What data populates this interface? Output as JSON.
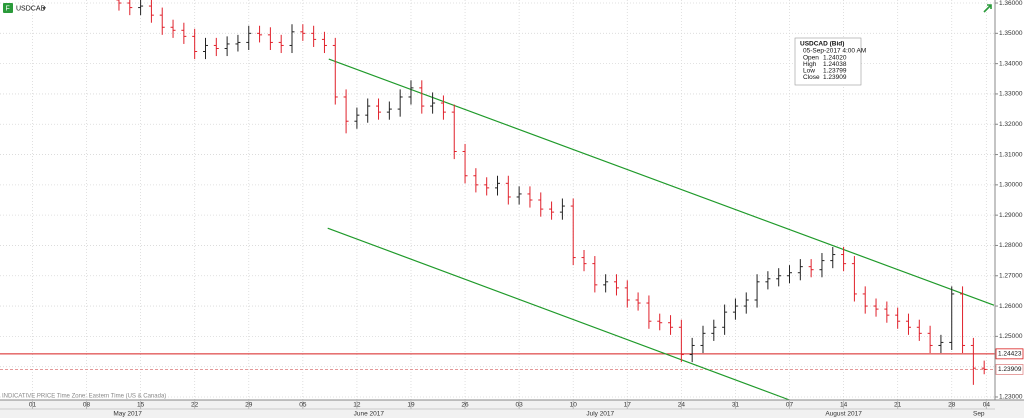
{
  "chart_data": {
    "type": "ohlc",
    "symbol": "USDCAD",
    "footnote": "INDICATIVE PRICE   Time Zone: Eastern Time (US & Canada)",
    "up_color": "#222222",
    "down_color": "#e0202a",
    "grid": true,
    "xlim": [
      -3,
      89
    ],
    "ylim": [
      1.229,
      1.361
    ],
    "yticks": [
      {
        "value": 1.23,
        "label": "1.23000"
      },
      {
        "value": 1.24,
        "label": "1.24000"
      },
      {
        "value": 1.25,
        "label": "1.25000"
      },
      {
        "value": 1.26,
        "label": "1.26000"
      },
      {
        "value": 1.27,
        "label": "1.27000"
      },
      {
        "value": 1.28,
        "label": "1.28000"
      },
      {
        "value": 1.29,
        "label": "1.29000"
      },
      {
        "value": 1.3,
        "label": "1.30000"
      },
      {
        "value": 1.31,
        "label": "1.31000"
      },
      {
        "value": 1.32,
        "label": "1.32000"
      },
      {
        "value": 1.33,
        "label": "1.33000"
      },
      {
        "value": 1.34,
        "label": "1.34000"
      },
      {
        "value": 1.35,
        "label": "1.35000"
      },
      {
        "value": 1.36,
        "label": "1.36000"
      }
    ],
    "xticks": [
      {
        "value": 0,
        "label": "01"
      },
      {
        "value": 5,
        "label": "08"
      },
      {
        "value": 10,
        "label": "15"
      },
      {
        "value": 15,
        "label": "22"
      },
      {
        "value": 20,
        "label": "29"
      },
      {
        "value": 25,
        "label": "05"
      },
      {
        "value": 30,
        "label": "12"
      },
      {
        "value": 35,
        "label": "19"
      },
      {
        "value": 40,
        "label": "26"
      },
      {
        "value": 45,
        "label": "03"
      },
      {
        "value": 50,
        "label": "10"
      },
      {
        "value": 55,
        "label": "17"
      },
      {
        "value": 60,
        "label": "24"
      },
      {
        "value": 65,
        "label": "31"
      },
      {
        "value": 70,
        "label": "07"
      },
      {
        "value": 75,
        "label": "14"
      },
      {
        "value": 80,
        "label": "21"
      },
      {
        "value": 85,
        "label": "28"
      },
      {
        "value": 88.2,
        "label": "04"
      }
    ],
    "month_labels": [
      {
        "value": 8.8,
        "label": "May 2017"
      },
      {
        "value": 31.1,
        "label": "June 2017"
      },
      {
        "value": 52.5,
        "label": "July 2017"
      },
      {
        "value": 75,
        "label": "August 2017"
      },
      {
        "value": 87.5,
        "label": "Sep"
      }
    ],
    "x": [
      8,
      9,
      10,
      11,
      12,
      13,
      14,
      15,
      16,
      17,
      18,
      19,
      20,
      21,
      22,
      23,
      24,
      25,
      26,
      27,
      28,
      29,
      30,
      31,
      32,
      33,
      34,
      35,
      36,
      37,
      38,
      39,
      40,
      41,
      42,
      43,
      44,
      45,
      46,
      47,
      48,
      49,
      50,
      51,
      52,
      53,
      54,
      55,
      56,
      57,
      58,
      59,
      60,
      61,
      62,
      63,
      64,
      65,
      66,
      67,
      68,
      69,
      70,
      71,
      72,
      73,
      74,
      75,
      76,
      77,
      78,
      79,
      80,
      81,
      82,
      83,
      84,
      85,
      86,
      87,
      88
    ],
    "open": [
      1.361,
      1.36,
      1.3585,
      1.359,
      1.356,
      1.352,
      1.351,
      1.349,
      1.344,
      1.346,
      1.345,
      1.3465,
      1.347,
      1.35,
      1.3495,
      1.347,
      1.346,
      1.3505,
      1.35,
      1.348,
      1.346,
      1.329,
      1.321,
      1.323,
      1.326,
      1.324,
      1.325,
      1.329,
      1.332,
      1.326,
      1.327,
      1.324,
      1.311,
      1.303,
      1.3,
      1.299,
      1.3005,
      1.296,
      1.297,
      1.295,
      1.292,
      1.291,
      1.293,
      1.276,
      1.274,
      1.267,
      1.268,
      1.266,
      1.262,
      1.261,
      1.255,
      1.2545,
      1.253,
      1.244,
      1.247,
      1.251,
      1.253,
      1.258,
      1.26,
      1.262,
      1.268,
      1.269,
      1.27,
      1.271,
      1.273,
      1.272,
      1.275,
      1.277,
      1.274,
      1.264,
      1.26,
      1.259,
      1.257,
      1.255,
      1.253,
      1.251,
      1.247,
      1.248,
      1.264,
      1.247,
      1.2395
    ],
    "high": [
      1.3635,
      1.3625,
      1.3615,
      1.3615,
      1.3585,
      1.3545,
      1.3535,
      1.3515,
      1.3485,
      1.3485,
      1.349,
      1.3495,
      1.3525,
      1.3525,
      1.352,
      1.3495,
      1.353,
      1.353,
      1.3525,
      1.3505,
      1.3485,
      1.3315,
      1.3255,
      1.3285,
      1.3285,
      1.3275,
      1.3315,
      1.3345,
      1.3345,
      1.3305,
      1.3295,
      1.3265,
      1.3135,
      1.3055,
      1.3025,
      1.303,
      1.303,
      1.2995,
      1.2995,
      1.2975,
      1.2945,
      1.2955,
      1.2955,
      1.2785,
      1.2765,
      1.2705,
      1.2705,
      1.2685,
      1.2645,
      1.2635,
      1.2575,
      1.257,
      1.2555,
      1.2495,
      1.2535,
      1.2555,
      1.2605,
      1.2625,
      1.2645,
      1.2705,
      1.2715,
      1.2725,
      1.2735,
      1.2755,
      1.2755,
      1.2775,
      1.2795,
      1.2795,
      1.2765,
      1.2665,
      1.2625,
      1.2615,
      1.2595,
      1.2575,
      1.2555,
      1.2535,
      1.2505,
      1.2665,
      1.2665,
      1.2495,
      1.242
    ],
    "low": [
      1.3575,
      1.356,
      1.356,
      1.3535,
      1.3495,
      1.3485,
      1.3465,
      1.3415,
      1.3415,
      1.3425,
      1.3425,
      1.344,
      1.3445,
      1.347,
      1.3445,
      1.3435,
      1.3435,
      1.3475,
      1.3455,
      1.3435,
      1.3265,
      1.317,
      1.3185,
      1.3205,
      1.3215,
      1.3215,
      1.3225,
      1.3265,
      1.3235,
      1.3235,
      1.3215,
      1.3085,
      1.3005,
      1.2975,
      1.2965,
      1.2965,
      1.2935,
      1.2935,
      1.2925,
      1.2895,
      1.2885,
      1.2885,
      1.2735,
      1.2715,
      1.2645,
      1.2645,
      1.2635,
      1.2595,
      1.2585,
      1.2525,
      1.252,
      1.2505,
      1.2415,
      1.2415,
      1.2445,
      1.2485,
      1.2505,
      1.2555,
      1.2575,
      1.2595,
      1.2655,
      1.2665,
      1.2675,
      1.2685,
      1.2695,
      1.2695,
      1.2725,
      1.2715,
      1.2615,
      1.2575,
      1.2565,
      1.2545,
      1.2525,
      1.2505,
      1.2485,
      1.2445,
      1.2445,
      1.2455,
      1.2445,
      1.234,
      1.2375
    ],
    "close": [
      1.36,
      1.3585,
      1.359,
      1.356,
      1.352,
      1.351,
      1.349,
      1.344,
      1.346,
      1.345,
      1.3465,
      1.347,
      1.35,
      1.3495,
      1.347,
      1.346,
      1.3505,
      1.35,
      1.348,
      1.346,
      1.329,
      1.321,
      1.323,
      1.326,
      1.324,
      1.325,
      1.329,
      1.332,
      1.326,
      1.327,
      1.324,
      1.311,
      1.303,
      1.3,
      1.299,
      1.3005,
      1.296,
      1.297,
      1.295,
      1.292,
      1.291,
      1.293,
      1.276,
      1.274,
      1.267,
      1.268,
      1.266,
      1.262,
      1.261,
      1.255,
      1.2545,
      1.253,
      1.244,
      1.247,
      1.251,
      1.253,
      1.258,
      1.26,
      1.262,
      1.268,
      1.269,
      1.27,
      1.271,
      1.273,
      1.272,
      1.275,
      1.277,
      1.274,
      1.264,
      1.26,
      1.259,
      1.257,
      1.255,
      1.253,
      1.251,
      1.247,
      1.248,
      1.264,
      1.247,
      1.2395,
      1.2391
    ],
    "hlines": [
      {
        "y": 1.24423,
        "color": "#d81e1e",
        "dashed": false
      },
      {
        "y": 1.23909,
        "color": "#e08a8a",
        "dashed": true
      }
    ],
    "trendlines": [
      {
        "x": [
          27.4,
          88.9
        ],
        "y": [
          1.3415,
          1.2603
        ],
        "color": "#1f9a2a"
      },
      {
        "x": [
          27.3,
          70
        ],
        "y": [
          1.2857,
          1.229
        ],
        "color": "#1f9a2a"
      }
    ],
    "tooltip": {
      "title": "USDCAD (Bid)",
      "date": "05-Sep-2017 4:00 AM",
      "rows": [
        {
          "label": "Open",
          "value": "1.24020"
        },
        {
          "label": "High",
          "value": "1.24038"
        },
        {
          "label": "Low",
          "value": "1.23799"
        },
        {
          "label": "Close",
          "value": "1.23909"
        }
      ]
    }
  }
}
